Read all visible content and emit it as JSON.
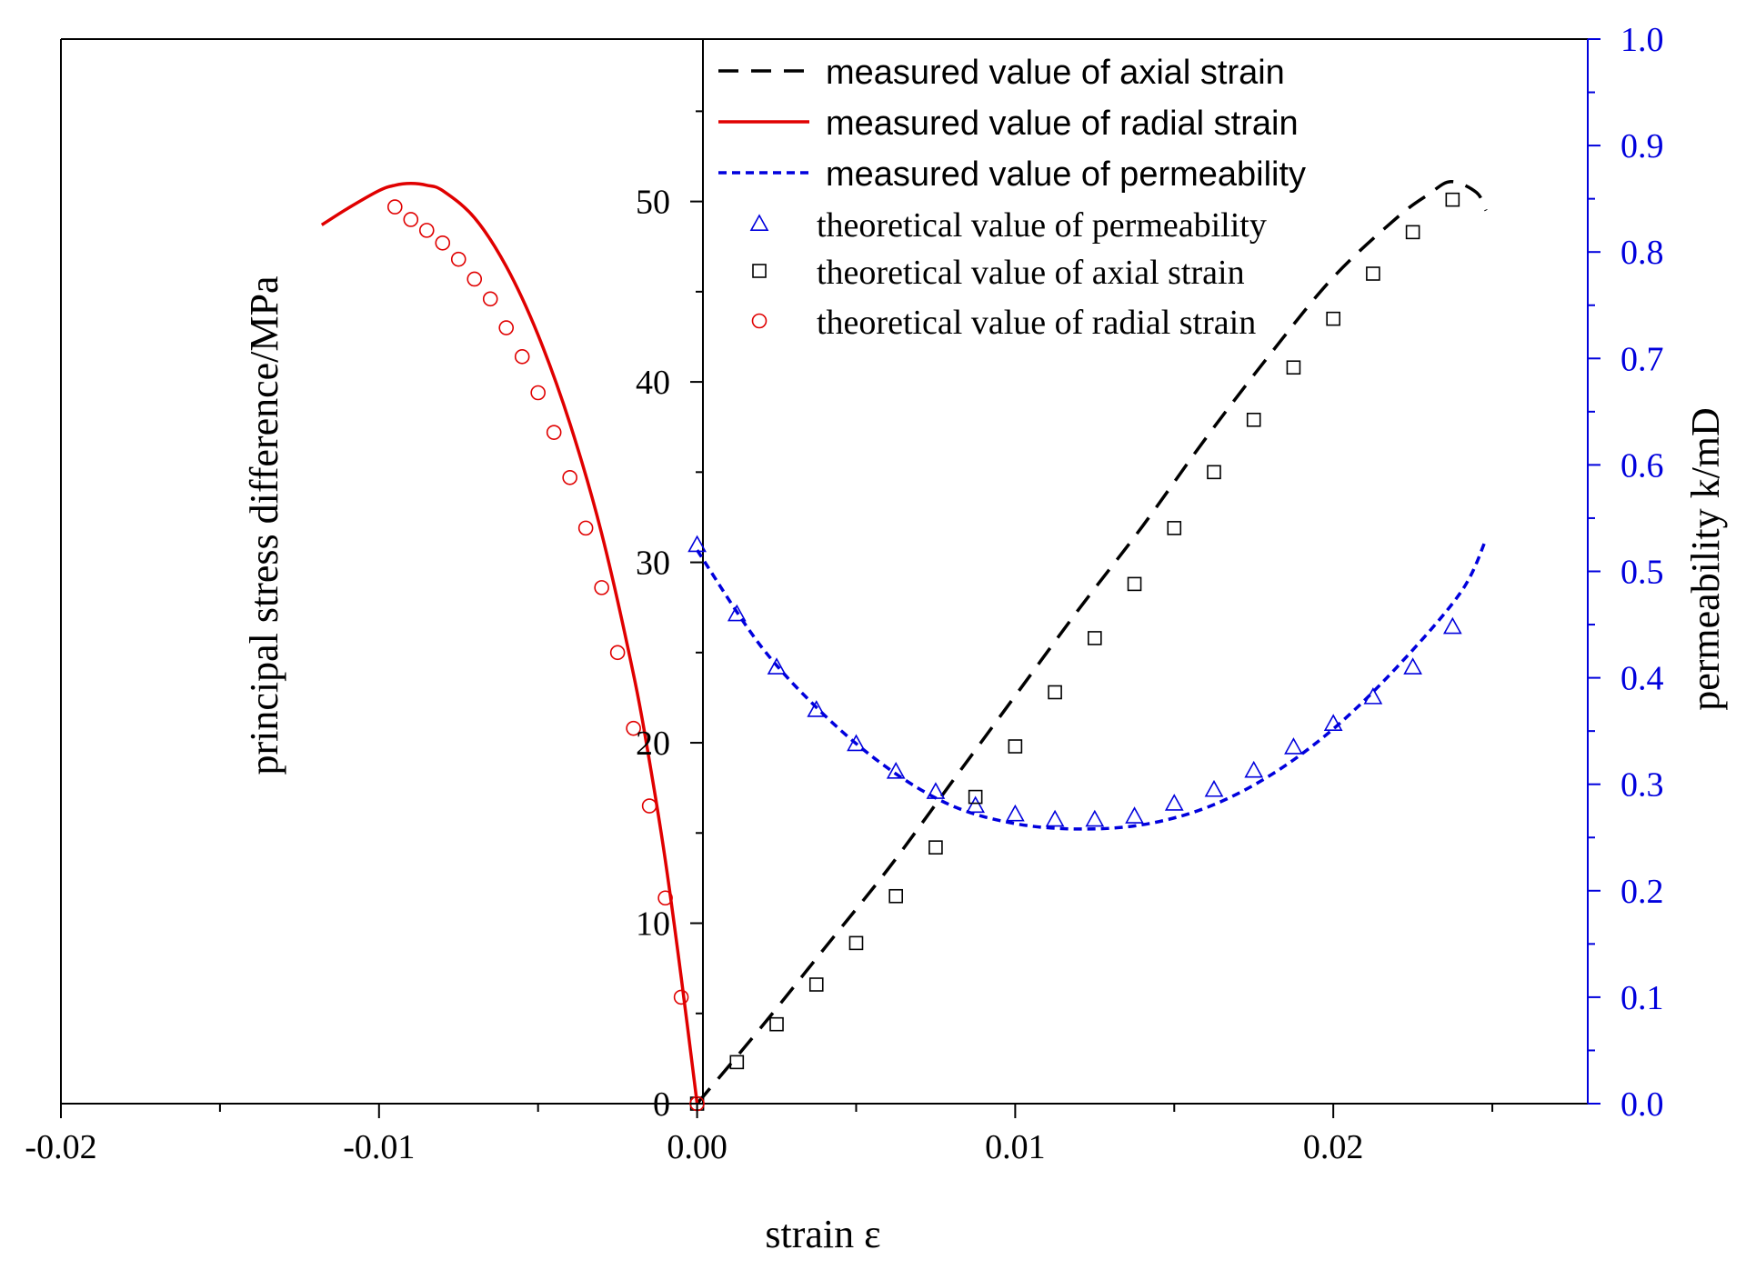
{
  "chart_data": {
    "type": "line",
    "xlabel": "strain ε",
    "ylabel_left": "principal stress difference/MPa",
    "ylabel_right": "permeability k/mD",
    "xlim": [
      -0.02,
      0.028
    ],
    "ylim_left": [
      0,
      59
    ],
    "ylim_right": [
      0,
      1.0
    ],
    "x_ticks": [
      -0.02,
      -0.01,
      0.0,
      0.01,
      0.02
    ],
    "x_tick_labels": [
      "-0.02",
      "-0.01",
      "0.00",
      "0.01",
      "0.02"
    ],
    "y_left_ticks": [
      0,
      10,
      20,
      30,
      40,
      50
    ],
    "y_left_tick_labels": [
      "0",
      "10",
      "20",
      "30",
      "40",
      "50"
    ],
    "y_right_ticks": [
      0.0,
      0.1,
      0.2,
      0.3,
      0.4,
      0.5,
      0.6,
      0.7,
      0.8,
      0.9,
      1.0
    ],
    "y_right_tick_labels": [
      "0.0",
      "0.1",
      "0.2",
      "0.3",
      "0.4",
      "0.5",
      "0.6",
      "0.7",
      "0.8",
      "0.9",
      "1.0"
    ],
    "colors": {
      "axial": "#000000",
      "radial": "#e00000",
      "permeability": "#0000dd",
      "right_axis": "#0000dd"
    },
    "legend": [
      {
        "label": "measured value of axial strain",
        "series": "axial_measured"
      },
      {
        "label": "measured value of radial strain",
        "series": "radial_measured"
      },
      {
        "label": "measured value of permeability",
        "series": "perm_measured"
      },
      {
        "label": "theoretical value of permeability",
        "series": "perm_theory"
      },
      {
        "label": "theoretical value of axial strain",
        "series": "axial_theory"
      },
      {
        "label": "theoretical value of radial strain",
        "series": "radial_theory"
      }
    ],
    "series": [
      {
        "name": "measured value of axial strain",
        "id": "axial_measured",
        "style": "dashed",
        "axis": "left",
        "color_key": "axial",
        "x": [
          0.0,
          0.002,
          0.004,
          0.006,
          0.008,
          0.01,
          0.012,
          0.014,
          0.016,
          0.018,
          0.02,
          0.022,
          0.023,
          0.0237,
          0.0245,
          0.0248
        ],
        "y": [
          0.0,
          4.2,
          8.6,
          13.0,
          17.8,
          22.6,
          27.4,
          32.0,
          36.9,
          41.5,
          45.8,
          49.1,
          50.4,
          51.1,
          50.5,
          49.5
        ]
      },
      {
        "name": "measured value of radial strain",
        "id": "radial_measured",
        "style": "solid",
        "axis": "left",
        "color_key": "radial",
        "x": [
          0.0,
          -0.0005,
          -0.001,
          -0.0015,
          -0.002,
          -0.003,
          -0.004,
          -0.005,
          -0.006,
          -0.007,
          -0.008,
          -0.0085,
          -0.009,
          -0.0095,
          -0.01,
          -0.011,
          -0.0118
        ],
        "y": [
          0.0,
          7.0,
          13.5,
          19.0,
          23.8,
          31.6,
          37.7,
          42.6,
          46.4,
          49.1,
          50.6,
          50.9,
          51.0,
          50.9,
          50.6,
          49.6,
          48.7
        ]
      },
      {
        "name": "measured value of permeability",
        "id": "perm_measured",
        "style": "dotted",
        "axis": "right",
        "color_key": "permeability",
        "x": [
          0.0,
          0.002,
          0.004,
          0.006,
          0.008,
          0.01,
          0.012,
          0.014,
          0.016,
          0.018,
          0.02,
          0.022,
          0.024,
          0.0248
        ],
        "y": [
          0.52,
          0.43,
          0.365,
          0.315,
          0.28,
          0.263,
          0.258,
          0.262,
          0.278,
          0.308,
          0.352,
          0.41,
          0.48,
          0.53
        ]
      },
      {
        "name": "theoretical value of permeability",
        "id": "perm_theory",
        "style": "triangle",
        "axis": "right",
        "color_key": "permeability",
        "x": [
          0.0,
          0.00125,
          0.0025,
          0.00375,
          0.005,
          0.00625,
          0.0075,
          0.00875,
          0.01,
          0.01125,
          0.0125,
          0.01375,
          0.015,
          0.01625,
          0.0175,
          0.01875,
          0.02,
          0.02125,
          0.0225,
          0.02375
        ],
        "y": [
          0.525,
          0.46,
          0.41,
          0.37,
          0.338,
          0.312,
          0.293,
          0.28,
          0.272,
          0.267,
          0.267,
          0.27,
          0.282,
          0.295,
          0.313,
          0.335,
          0.357,
          0.382,
          0.41,
          0.448
        ]
      },
      {
        "name": "theoretical value of axial strain",
        "id": "axial_theory",
        "style": "square",
        "axis": "left",
        "color_key": "axial",
        "x": [
          0.0,
          0.00125,
          0.0025,
          0.00375,
          0.005,
          0.00625,
          0.0075,
          0.00875,
          0.01,
          0.01125,
          0.0125,
          0.01375,
          0.015,
          0.01625,
          0.0175,
          0.01875,
          0.02,
          0.02125,
          0.0225,
          0.02375
        ],
        "y": [
          0.0,
          2.3,
          4.4,
          6.6,
          8.9,
          11.5,
          14.2,
          17.0,
          19.8,
          22.8,
          25.8,
          28.8,
          31.9,
          35.0,
          37.9,
          40.8,
          43.5,
          46.0,
          48.3,
          50.1
        ]
      },
      {
        "name": "theoretical value of radial strain",
        "id": "radial_theory",
        "style": "circle",
        "axis": "left",
        "color_key": "radial",
        "x": [
          0.0,
          -0.0005,
          -0.001,
          -0.0015,
          -0.002,
          -0.0025,
          -0.003,
          -0.0035,
          -0.004,
          -0.0045,
          -0.005,
          -0.0055,
          -0.006,
          -0.0065,
          -0.007,
          -0.0075,
          -0.008,
          -0.0085,
          -0.009,
          -0.0095
        ],
        "y": [
          0.0,
          5.9,
          11.4,
          16.5,
          20.8,
          25.0,
          28.6,
          31.9,
          34.7,
          37.2,
          39.4,
          41.4,
          43.0,
          44.6,
          45.7,
          46.8,
          47.7,
          48.4,
          49.0,
          49.7
        ]
      }
    ]
  }
}
